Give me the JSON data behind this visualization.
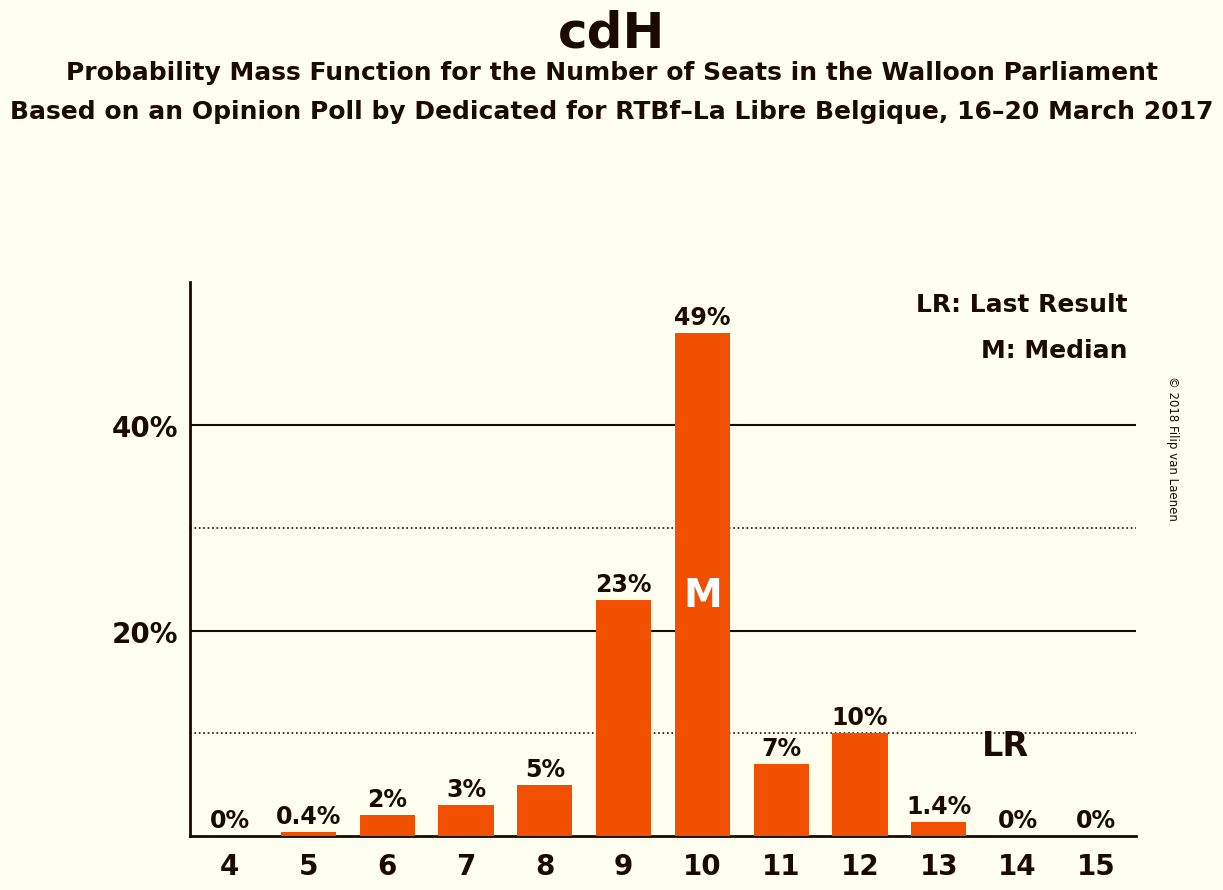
{
  "title": "cdH",
  "subtitle1": "Probability Mass Function for the Number of Seats in the Walloon Parliament",
  "subtitle2": "Based on an Opinion Poll by Dedicated for RTBf–La Libre Belgique, 16–20 March 2017",
  "copyright": "© 2018 Filip van Laenen",
  "seats": [
    4,
    5,
    6,
    7,
    8,
    9,
    10,
    11,
    12,
    13,
    14,
    15
  ],
  "probabilities": [
    0.0,
    0.4,
    2.0,
    3.0,
    5.0,
    23.0,
    49.0,
    7.0,
    10.0,
    1.4,
    0.0,
    0.0
  ],
  "bar_labels": [
    "0%",
    "0.4%",
    "2%",
    "3%",
    "5%",
    "23%",
    "49%",
    "7%",
    "10%",
    "1.4%",
    "0%",
    "0%"
  ],
  "bar_color": "#F05000",
  "background_color": "#FFFFF0",
  "text_color": "#1a0a00",
  "median_seat": 10,
  "lr_seat": 13,
  "legend_lr": "LR: Last Result",
  "legend_m": "M: Median",
  "solid_gridlines": [
    20,
    40
  ],
  "dotted_gridlines": [
    10,
    30
  ],
  "ylim": [
    0,
    54
  ],
  "ytick_labels": [
    "20%",
    "40%"
  ],
  "ytick_values": [
    20,
    40
  ],
  "title_fontsize": 36,
  "subtitle_fontsize": 18,
  "bar_label_fontsize": 17,
  "tick_fontsize": 20,
  "legend_fontsize": 18,
  "m_fontsize": 28,
  "lr_fontsize": 24
}
